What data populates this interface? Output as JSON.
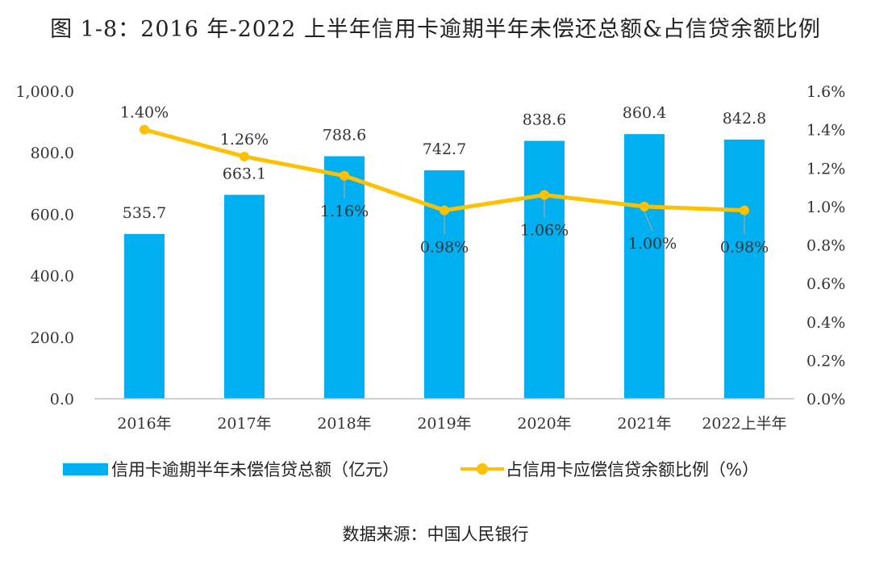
{
  "title": "图 1-8：2016 年-2022 上半年信用卡逾期半年未偿还总额&占信贷余额比例",
  "source": "数据来源：中国人民银行",
  "chart_data": {
    "type": "bar",
    "categories": [
      "2016年",
      "2017年",
      "2018年",
      "2019年",
      "2020年",
      "2021年",
      "2022上半年"
    ],
    "series": [
      {
        "name": "信用卡逾期半年未偿信贷总额（亿元）",
        "type": "bar",
        "axis": "left",
        "color": "#00b0f0",
        "values": [
          535.7,
          663.1,
          788.6,
          742.7,
          838.6,
          860.4,
          842.8
        ],
        "labels": [
          "535.7",
          "663.1",
          "788.6",
          "742.7",
          "838.6",
          "860.4",
          "842.8"
        ]
      },
      {
        "name": "占信用卡应偿信贷余额比例（%）",
        "type": "line",
        "axis": "right",
        "color": "#ffc000",
        "values": [
          1.4,
          1.26,
          1.16,
          0.98,
          1.06,
          1.0,
          0.98
        ],
        "labels": [
          "1.40%",
          "1.26%",
          "1.16%",
          "0.98%",
          "1.06%",
          "1.00%",
          "0.98%"
        ]
      }
    ],
    "y_left": {
      "range": [
        0,
        1000
      ],
      "ticks": [
        0,
        200,
        400,
        600,
        800,
        1000
      ],
      "tick_labels": [
        "0.0",
        "200.0",
        "400.0",
        "600.0",
        "800.0",
        "1,000.0"
      ]
    },
    "y_right": {
      "range": [
        0,
        1.6
      ],
      "ticks": [
        0,
        0.2,
        0.4,
        0.6,
        0.8,
        1.0,
        1.2,
        1.4,
        1.6
      ],
      "tick_labels": [
        "0.0%",
        "0.2%",
        "0.4%",
        "0.6%",
        "0.8%",
        "1.0%",
        "1.2%",
        "1.4%",
        "1.6%"
      ]
    },
    "grid": false,
    "legend_position": "bottom"
  }
}
